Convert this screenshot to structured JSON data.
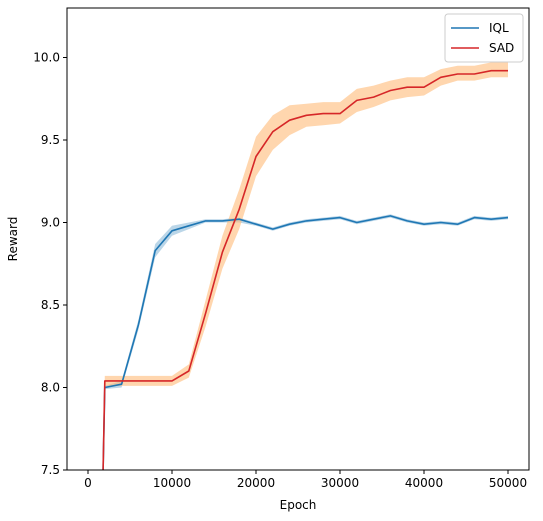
{
  "chart_data": {
    "type": "line",
    "title": "",
    "xlabel": "Epoch",
    "ylabel": "Reward",
    "xlim": [
      -2500,
      52500
    ],
    "ylim": [
      7.5,
      10.3
    ],
    "xticks": [
      0,
      10000,
      20000,
      30000,
      40000,
      50000
    ],
    "yticks": [
      7.5,
      8.0,
      8.5,
      9.0,
      9.5,
      10.0
    ],
    "xtick_labels": [
      "0",
      "10000",
      "20000",
      "30000",
      "40000",
      "50000"
    ],
    "ytick_labels": [
      "7.5",
      "8.0",
      "8.5",
      "9.0",
      "9.5",
      "10.0"
    ],
    "grid": false,
    "legend_position": "top-right",
    "series": [
      {
        "name": "IQL",
        "color": "#1f77b4",
        "band_color": "#1f77b4",
        "x": [
          1800,
          2000,
          4000,
          6000,
          8000,
          10000,
          12000,
          14000,
          16000,
          18000,
          20000,
          22000,
          24000,
          26000,
          28000,
          30000,
          32000,
          34000,
          36000,
          38000,
          40000,
          42000,
          44000,
          46000,
          48000,
          50000
        ],
        "y": [
          7.5,
          8.0,
          8.02,
          8.38,
          8.83,
          8.95,
          8.98,
          9.01,
          9.01,
          9.02,
          8.99,
          8.96,
          8.99,
          9.01,
          9.02,
          9.03,
          9.0,
          9.02,
          9.04,
          9.01,
          8.99,
          9.0,
          8.99,
          9.03,
          9.02,
          9.03
        ],
        "lower": [
          7.5,
          7.99,
          8.0,
          8.35,
          8.79,
          8.92,
          8.96,
          9.0,
          9.0,
          9.0,
          8.98,
          8.95,
          8.98,
          9.0,
          9.01,
          9.02,
          8.99,
          9.01,
          9.03,
          9.0,
          8.98,
          8.99,
          8.98,
          9.02,
          9.01,
          9.02
        ],
        "upper": [
          7.5,
          8.01,
          8.04,
          8.41,
          8.87,
          8.98,
          9.0,
          9.02,
          9.02,
          9.03,
          9.0,
          8.97,
          9.0,
          9.02,
          9.03,
          9.04,
          9.01,
          9.03,
          9.05,
          9.02,
          9.0,
          9.01,
          9.0,
          9.04,
          9.03,
          9.04
        ]
      },
      {
        "name": "SAD",
        "color": "#d62728",
        "band_color": "#ffbb78",
        "x": [
          1800,
          2000,
          4000,
          6000,
          8000,
          10000,
          12000,
          14000,
          16000,
          18000,
          20000,
          22000,
          24000,
          26000,
          28000,
          30000,
          32000,
          34000,
          36000,
          38000,
          40000,
          42000,
          44000,
          46000,
          48000,
          50000
        ],
        "y": [
          7.5,
          8.04,
          8.04,
          8.04,
          8.04,
          8.04,
          8.1,
          8.45,
          8.82,
          9.08,
          9.4,
          9.55,
          9.62,
          9.65,
          9.66,
          9.66,
          9.74,
          9.76,
          9.8,
          9.82,
          9.82,
          9.88,
          9.9,
          9.9,
          9.92,
          9.92
        ],
        "lower": [
          7.5,
          8.01,
          8.01,
          8.01,
          8.01,
          8.01,
          8.06,
          8.37,
          8.72,
          8.96,
          9.28,
          9.44,
          9.53,
          9.58,
          9.59,
          9.6,
          9.67,
          9.7,
          9.74,
          9.76,
          9.77,
          9.83,
          9.86,
          9.86,
          9.88,
          9.88
        ],
        "upper": [
          7.5,
          8.07,
          8.07,
          8.07,
          8.07,
          8.07,
          8.14,
          8.53,
          8.92,
          9.2,
          9.52,
          9.65,
          9.71,
          9.72,
          9.73,
          9.73,
          9.81,
          9.83,
          9.86,
          9.88,
          9.88,
          9.93,
          9.95,
          9.95,
          9.97,
          9.97
        ]
      }
    ]
  }
}
